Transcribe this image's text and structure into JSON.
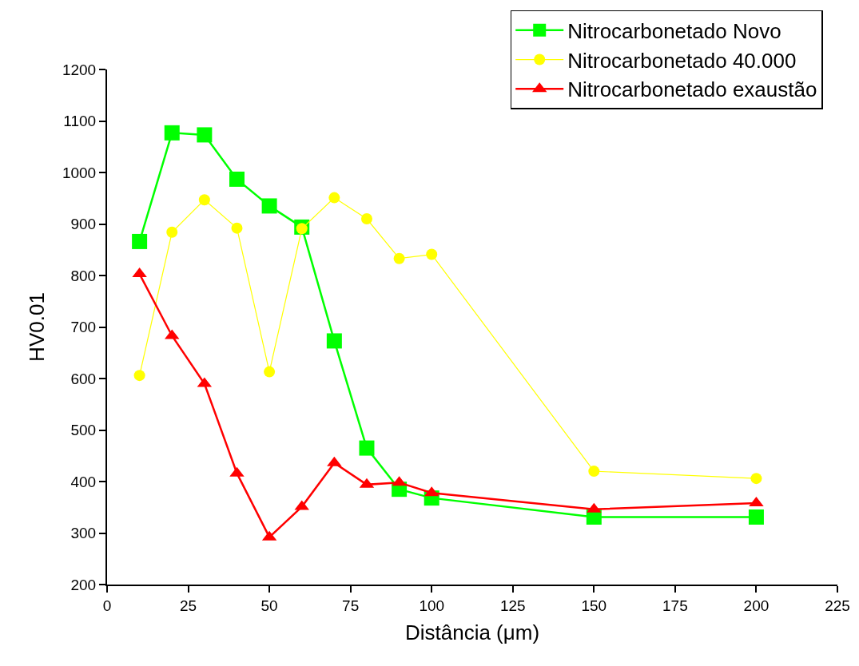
{
  "chart_data": {
    "type": "line",
    "xlabel": "Distância (μm)",
    "ylabel": "HV0.01",
    "x": [
      10,
      20,
      30,
      40,
      50,
      60,
      70,
      80,
      90,
      100,
      150,
      200
    ],
    "series": [
      {
        "name": "Nitrocarbonetado Novo",
        "color": "#00ff00",
        "marker": "square",
        "values": [
          866,
          1077,
          1073,
          987,
          935,
          894,
          673,
          465,
          385,
          368,
          331,
          331
        ]
      },
      {
        "name": "Nitrocarbonetado 40.000",
        "color": "#ffff00",
        "marker": "circle",
        "values": [
          606,
          884,
          947,
          892,
          613,
          891,
          951,
          910,
          833,
          841,
          420,
          406
        ]
      },
      {
        "name": "Nitrocarbonetado exaustão",
        "color": "#ff0000",
        "marker": "triangle",
        "values": [
          803,
          683,
          590,
          416,
          292,
          351,
          436,
          394,
          398,
          378,
          346,
          358
        ]
      }
    ],
    "xlim": [
      0,
      225
    ],
    "xticks": [
      0,
      25,
      50,
      75,
      100,
      125,
      150,
      175,
      200,
      225
    ],
    "ylim": [
      200,
      1200
    ],
    "yticks": [
      200,
      300,
      400,
      500,
      600,
      700,
      800,
      900,
      1000,
      1100,
      1200
    ],
    "grid": false,
    "legend": "top right",
    "line_style": "solid"
  }
}
